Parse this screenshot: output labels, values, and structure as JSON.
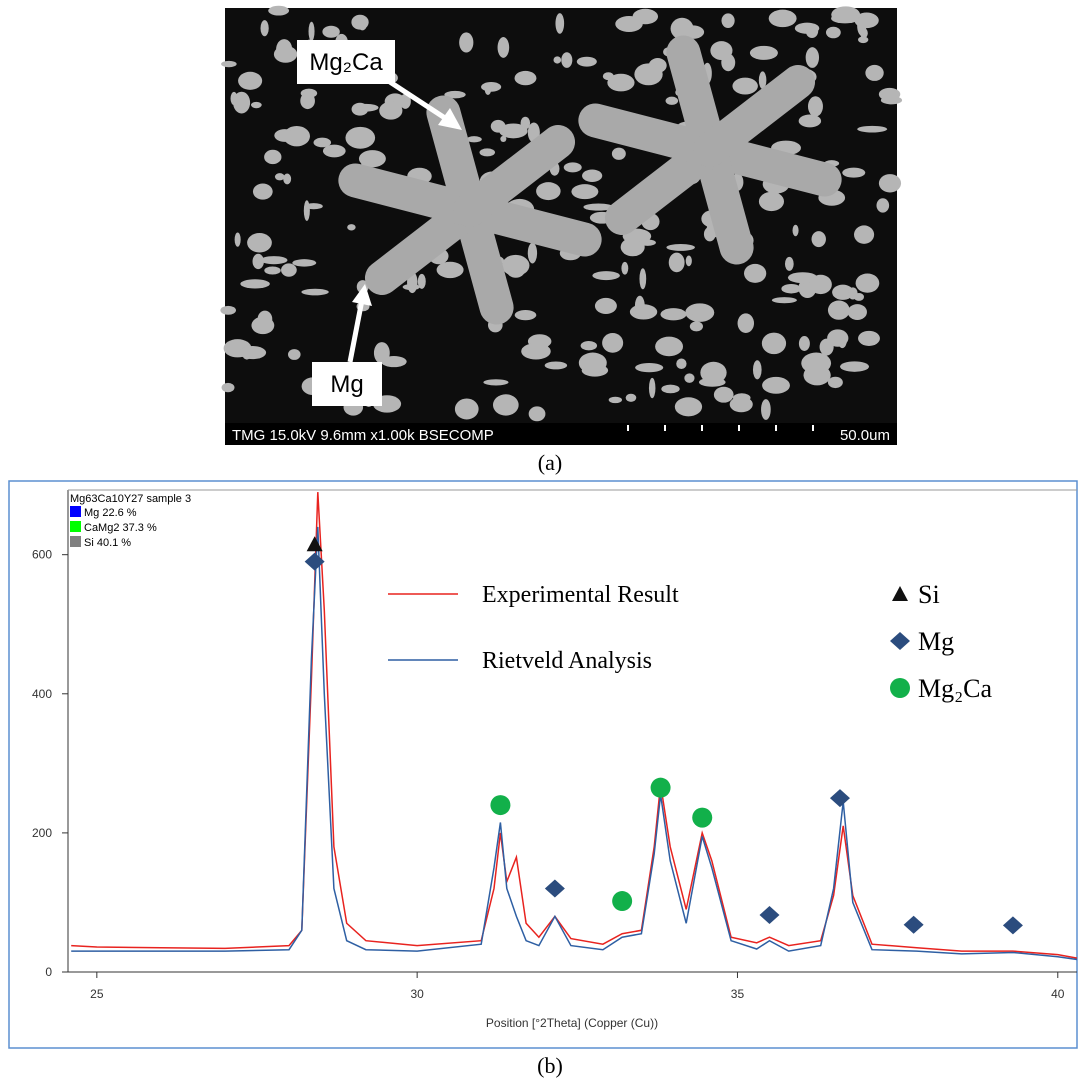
{
  "image": {
    "labels": [
      "Mg₂Ca",
      "Mg"
    ],
    "info": "TMG 15.0kV 9.6mm x1.00k BSECOMP",
    "scale": "50.0um",
    "caption": "(a)"
  },
  "chart_data": {
    "type": "line",
    "caption": "(b)",
    "xlabel": "Position [°2Theta] (Copper (Cu))",
    "xlim": [
      24.55,
      40.3
    ],
    "ylim": [
      0,
      693
    ],
    "xticks": [
      25,
      30,
      35,
      40
    ],
    "yticks": [
      0,
      200,
      400,
      600
    ],
    "phase_legend": {
      "title": "Mg63Ca10Y27 sample 3",
      "items": [
        {
          "label": "Mg 22.6 %",
          "color": "#0000ff"
        },
        {
          "label": "CaMg2 37.3 %",
          "color": "#00ff00"
        },
        {
          "label": "Si 40.1 %",
          "color": "#808080"
        }
      ]
    },
    "x": [
      24.6,
      25,
      26,
      27,
      28,
      28.2,
      28.35,
      28.45,
      28.55,
      28.7,
      28.9,
      29.2,
      30,
      31,
      31.2,
      31.3,
      31.4,
      31.55,
      31.7,
      31.9,
      32.15,
      32.4,
      32.9,
      33.2,
      33.5,
      33.7,
      33.8,
      33.95,
      34.2,
      34.45,
      34.6,
      34.9,
      35.3,
      35.5,
      35.8,
      36.3,
      36.5,
      36.65,
      36.8,
      37.1,
      37.8,
      38.5,
      39.3,
      40,
      40.3
    ],
    "series": [
      {
        "name": "Experimental Result",
        "color": "#e8231f",
        "values": [
          38,
          36,
          35,
          34,
          38,
          60,
          420,
          690,
          520,
          180,
          70,
          45,
          38,
          45,
          120,
          200,
          130,
          165,
          70,
          50,
          80,
          48,
          40,
          55,
          60,
          180,
          270,
          180,
          90,
          200,
          160,
          50,
          42,
          50,
          38,
          45,
          110,
          210,
          110,
          40,
          35,
          30,
          30,
          25,
          20
        ]
      },
      {
        "name": "Rietveld Analysis",
        "color": "#2e5fa3",
        "values": [
          30,
          30,
          30,
          30,
          32,
          60,
          450,
          640,
          400,
          120,
          45,
          32,
          30,
          40,
          150,
          215,
          120,
          80,
          45,
          38,
          80,
          38,
          32,
          50,
          55,
          170,
          255,
          160,
          70,
          195,
          150,
          45,
          33,
          45,
          30,
          38,
          120,
          245,
          100,
          32,
          30,
          26,
          28,
          22,
          18
        ]
      }
    ],
    "markers": [
      {
        "name": "Si",
        "shape": "triangle",
        "color": "#111111",
        "x": [
          28.4
        ],
        "values": [
          615
        ]
      },
      {
        "name": "Mg",
        "shape": "diamond",
        "color": "#2b4c7e",
        "x": [
          28.4,
          32.15,
          35.5,
          36.6,
          37.75,
          39.3
        ],
        "values": [
          590,
          120,
          82,
          250,
          68,
          67
        ]
      },
      {
        "name": "Mg₂Ca",
        "shape": "circle",
        "color": "#12b04a",
        "x": [
          31.3,
          33.2,
          33.8,
          34.45
        ],
        "values": [
          240,
          102,
          265,
          222
        ]
      }
    ]
  }
}
